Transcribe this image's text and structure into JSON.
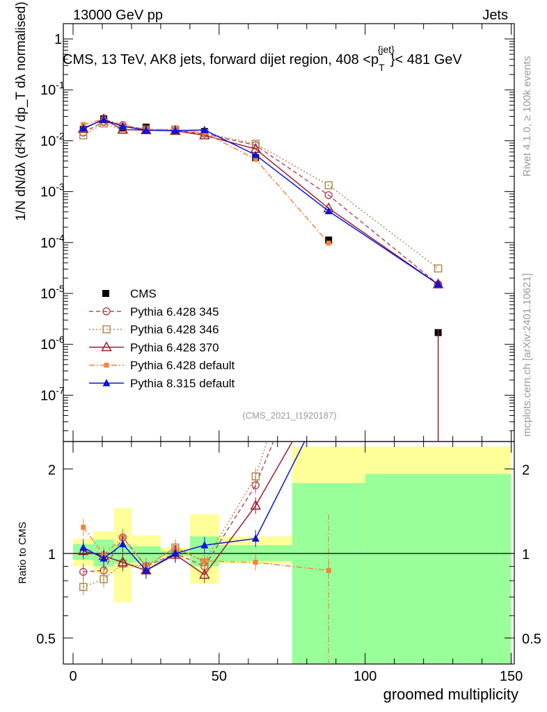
{
  "header": {
    "left": "13000 GeV pp",
    "right": "Jets"
  },
  "plot_title": "CMS, 13 TeV, AK8 jets, forward dijet region, 408 <p",
  "plot_title_sup": "{jet}",
  "plot_title_sub": "T",
  "plot_title_end": "}< 481 GeV",
  "side_labels": {
    "rivet": "Rivet 4.1.0, ≥ 100k events",
    "mcplots": "mcplots.cern.ch [arXiv:2401.10621]"
  },
  "analysis_id": "(CMS_2021_I1920187)",
  "ylabel_main": "1/N dN/dλ (d²N / dp_T dλ normalised)",
  "ylabel_ratio": "Ratio to CMS",
  "xlabel": "groomed multiplicity",
  "main_yticks": [
    "1",
    "10",
    "10",
    "10",
    "10",
    "10",
    "10",
    "10"
  ],
  "main_yexps": [
    "",
    "-1",
    "-2",
    "-3",
    "-4",
    "-5",
    "-6",
    "-7"
  ],
  "ratio_yticks": [
    "0.5",
    "1",
    "2"
  ],
  "xticks": [
    "0",
    "50",
    "100",
    "150"
  ],
  "legend": [
    "CMS",
    "Pythia 6.428 345",
    "Pythia 6.428 346",
    "Pythia 6.428 370",
    "Pythia 6.428 default",
    "Pythia 8.315 default"
  ],
  "colors": {
    "cms": "#000000",
    "p345": "#b44a5c",
    "p346": "#b08a4a",
    "p370": "#9b1c2c",
    "pdef": "#f5823c",
    "p8": "#0a14dc",
    "band_green": "#99ff99",
    "band_yellow": "#ffff99"
  },
  "chart_data": {
    "type": "line",
    "xlabel": "groomed multiplicity",
    "ylabel": "1/N dN/dλ",
    "xlim": [
      -5,
      152
    ],
    "ylim_main": [
      2e-08,
      3
    ],
    "ylim_ratio": [
      0.38,
      2.3
    ],
    "yscale": "log",
    "x_edges": [
      0,
      7,
      14,
      20,
      30,
      40,
      50,
      75,
      100,
      150
    ],
    "x": [
      3.5,
      10.5,
      17,
      25,
      35,
      45,
      62.5,
      87.5,
      125
    ],
    "cms": {
      "name": "CMS",
      "values": [
        0.0168,
        0.027,
        0.0178,
        0.0185,
        0.0158,
        0.0152,
        0.00465,
        0.000112,
        1.7e-06
      ]
    },
    "series": [
      {
        "name": "Pythia 6.428 345",
        "ratio": [
          0.86,
          0.87,
          1.14,
          0.9,
          1.0,
          0.9,
          1.75,
          7.6,
          8.9
        ]
      },
      {
        "name": "Pythia 6.428 346",
        "ratio": [
          0.76,
          0.81,
          0.92,
          0.9,
          1.05,
          0.93,
          1.88,
          11.9,
          18.2
        ]
      },
      {
        "name": "Pythia 6.428 370",
        "ratio": [
          1.02,
          0.98,
          0.93,
          0.87,
          0.99,
          0.84,
          1.48,
          4.2,
          8.9
        ]
      },
      {
        "name": "Pythia 6.428 default",
        "ratio": [
          1.24,
          0.99,
          1.14,
          0.9,
          1.05,
          0.94,
          0.93,
          0.87,
          null
        ]
      },
      {
        "name": "Pythia 8.315 default",
        "ratio": [
          1.05,
          0.96,
          1.08,
          0.87,
          1.0,
          1.07,
          1.13,
          3.7,
          8.9
        ]
      }
    ],
    "band_green": [
      [
        0.95,
        1.08
      ],
      [
        0.9,
        1.12
      ],
      [
        0.92,
        1.08
      ],
      [
        0.93,
        1.06
      ],
      [
        0.98,
        1.02
      ],
      [
        0.9,
        1.15
      ],
      [
        0.94,
        1.07
      ],
      [
        0.0,
        1.78
      ],
      [
        0.0,
        1.92
      ]
    ],
    "band_yellow": [
      [
        0.9,
        1.13
      ],
      [
        0.85,
        1.2
      ],
      [
        0.67,
        1.45
      ],
      [
        0.9,
        1.16
      ],
      [
        0.96,
        1.05
      ],
      [
        0.78,
        1.38
      ],
      [
        0.92,
        1.15
      ],
      [
        0.0,
        2.4
      ],
      [
        0.0,
        2.4
      ]
    ]
  }
}
